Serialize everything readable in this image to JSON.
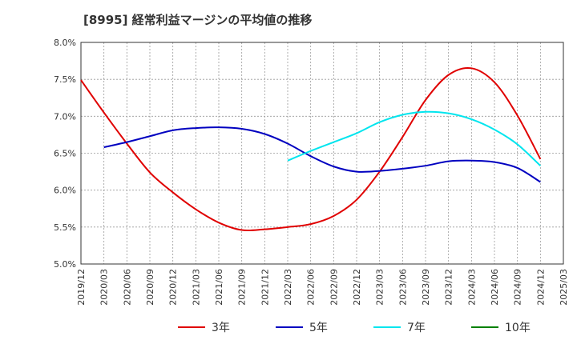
{
  "chart_data": {
    "type": "line",
    "title": "[8995]  経常利益マージンの平均値の推移",
    "xlabel": "",
    "ylabel": "",
    "x_ticks": [
      "2019/12",
      "2020/03",
      "2020/06",
      "2020/09",
      "2020/12",
      "2021/03",
      "2021/06",
      "2021/09",
      "2021/12",
      "2022/03",
      "2022/06",
      "2022/09",
      "2022/12",
      "2023/03",
      "2023/06",
      "2023/09",
      "2023/12",
      "2024/03",
      "2024/06",
      "2024/09",
      "2024/12",
      "2025/03"
    ],
    "y_ticks": [
      "5.0%",
      "5.5%",
      "6.0%",
      "6.5%",
      "7.0%",
      "7.5%",
      "8.0%"
    ],
    "ylim": [
      5.0,
      8.0
    ],
    "grid": true,
    "legend_position": "bottom",
    "series": [
      {
        "name": "3年",
        "color": "#e00000",
        "points": [
          [
            "2019/12",
            7.49
          ],
          [
            "2020/03",
            7.05
          ],
          [
            "2020/06",
            6.63
          ],
          [
            "2020/09",
            6.24
          ],
          [
            "2020/12",
            5.97
          ],
          [
            "2021/03",
            5.74
          ],
          [
            "2021/06",
            5.56
          ],
          [
            "2021/09",
            5.46
          ],
          [
            "2021/12",
            5.47
          ],
          [
            "2022/03",
            5.5
          ],
          [
            "2022/06",
            5.54
          ],
          [
            "2022/09",
            5.65
          ],
          [
            "2022/12",
            5.87
          ],
          [
            "2023/03",
            6.25
          ],
          [
            "2023/06",
            6.72
          ],
          [
            "2023/09",
            7.22
          ],
          [
            "2023/12",
            7.56
          ],
          [
            "2024/03",
            7.65
          ],
          [
            "2024/06",
            7.46
          ],
          [
            "2024/09",
            7.01
          ],
          [
            "2024/12",
            6.42
          ]
        ]
      },
      {
        "name": "5年",
        "color": "#0000c0",
        "points": [
          [
            "2020/03",
            6.58
          ],
          [
            "2020/06",
            6.65
          ],
          [
            "2020/09",
            6.73
          ],
          [
            "2020/12",
            6.81
          ],
          [
            "2021/03",
            6.84
          ],
          [
            "2021/06",
            6.85
          ],
          [
            "2021/09",
            6.83
          ],
          [
            "2021/12",
            6.76
          ],
          [
            "2022/03",
            6.63
          ],
          [
            "2022/06",
            6.46
          ],
          [
            "2022/09",
            6.32
          ],
          [
            "2022/12",
            6.25
          ],
          [
            "2023/03",
            6.26
          ],
          [
            "2023/06",
            6.29
          ],
          [
            "2023/09",
            6.33
          ],
          [
            "2023/12",
            6.39
          ],
          [
            "2024/03",
            6.4
          ],
          [
            "2024/06",
            6.38
          ],
          [
            "2024/09",
            6.3
          ],
          [
            "2024/12",
            6.11
          ]
        ]
      },
      {
        "name": "7年",
        "color": "#00e5ee",
        "points": [
          [
            "2022/03",
            6.4
          ],
          [
            "2022/06",
            6.53
          ],
          [
            "2022/09",
            6.65
          ],
          [
            "2022/12",
            6.77
          ],
          [
            "2023/03",
            6.92
          ],
          [
            "2023/06",
            7.02
          ],
          [
            "2023/09",
            7.06
          ],
          [
            "2023/12",
            7.04
          ],
          [
            "2024/03",
            6.96
          ],
          [
            "2024/06",
            6.82
          ],
          [
            "2024/09",
            6.62
          ],
          [
            "2024/12",
            6.33
          ]
        ]
      },
      {
        "name": "10年",
        "color": "#008000",
        "points": []
      }
    ]
  }
}
